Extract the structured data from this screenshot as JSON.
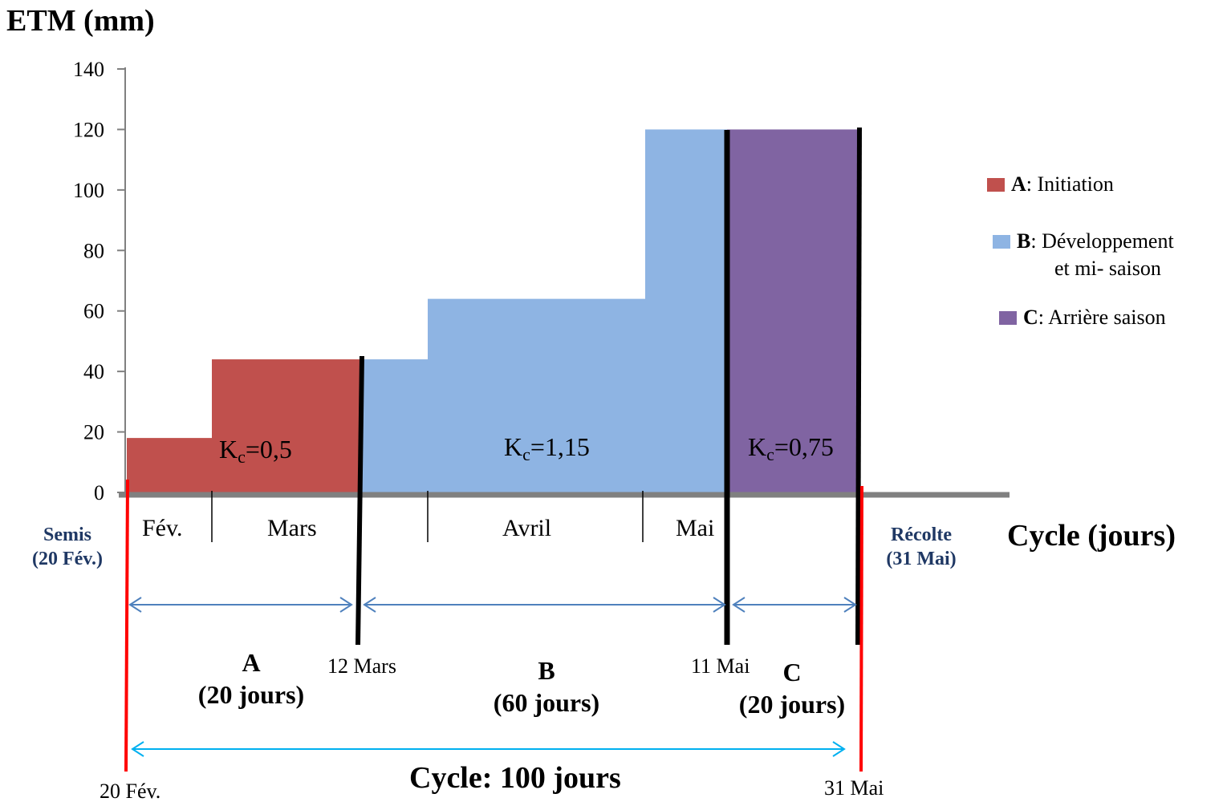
{
  "chart_data": {
    "type": "bar",
    "title": "",
    "ylabel": "ETM (mm)",
    "xlabel": "Cycle (jours)",
    "ylim": [
      0,
      140
    ],
    "yticks": [
      "0",
      "20",
      "40",
      "60",
      "80",
      "100",
      "120",
      "140"
    ],
    "ytick_values": [
      0,
      20,
      40,
      60,
      80,
      100,
      120,
      140
    ],
    "months": [
      "Fév.",
      "Mars",
      "Avril",
      "Mai"
    ],
    "steps": [
      {
        "value": 18,
        "stage": "A"
      },
      {
        "value": 44,
        "stage": "A"
      },
      {
        "value": 44,
        "stage": "B"
      },
      {
        "value": 64,
        "stage": "B"
      },
      {
        "value": 120,
        "stage": "B"
      },
      {
        "value": 120,
        "stage": "C"
      }
    ],
    "stages": [
      {
        "key": "A",
        "name": "Initiation",
        "color": "#C0504D",
        "kc": "=0,5",
        "letter": "A",
        "duration": "(20 jours)"
      },
      {
        "key": "B",
        "name": "Développement",
        "name2": "et mi- saison",
        "color": "#8EB4E3",
        "kc": "=1,15",
        "letter": "B",
        "duration": "(60 jours)"
      },
      {
        "key": "C",
        "name": "Arrière saison",
        "color": "#8064A2",
        "kc": "=0,75",
        "letter": "C",
        "duration": "(20 jours)"
      }
    ],
    "dates": {
      "start": "20 Fév.",
      "a_end": "12 Mars",
      "b_end": "11 Mai",
      "end": "31 Mai"
    },
    "sowing": {
      "line1": "Semis",
      "line2": "(20 Fév.)"
    },
    "harvest": {
      "line1": "Récolte",
      "line2": "(31 Mai)"
    },
    "cycle_total": "Cycle: 100 jours",
    "kc_symbol": "K",
    "kc_sub": "c",
    "colors": {
      "axis": "#808080",
      "boundary_black": "#000000",
      "boundary_red": "#FF0000",
      "stage_arrow": "#4F81BD",
      "cycle_arrow": "#00B0F0",
      "date_label_color": "#1F3864"
    }
  }
}
